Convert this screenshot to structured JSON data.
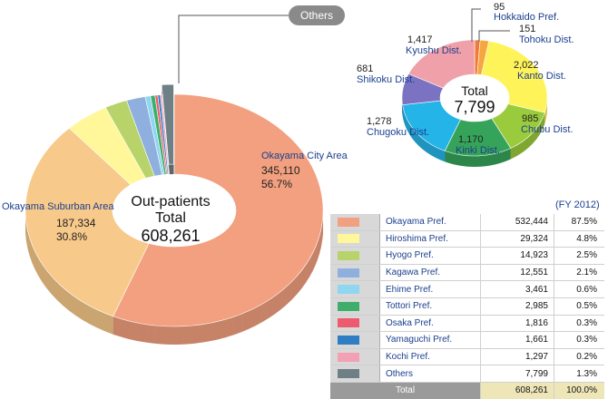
{
  "others_callout": "Others",
  "main_chart": {
    "center_title": "Out-patients Total",
    "center_total": "608,261",
    "labels": [
      {
        "name": "Okayama City Area",
        "value": "345,110",
        "pct": "56.7%"
      },
      {
        "name": "Okayama Suburban Area",
        "value": "187,334",
        "pct": "30.8%"
      }
    ]
  },
  "others_chart": {
    "center_title": "Total",
    "center_total": "7,799",
    "labels": [
      {
        "name": "Hokkaido Pref.",
        "value": "95"
      },
      {
        "name": "Tohoku Dist.",
        "value": "151"
      },
      {
        "name": "Kanto Dist.",
        "value": "2,022"
      },
      {
        "name": "Chubu Dist.",
        "value": "985"
      },
      {
        "name": "Kinki Dist.",
        "value": "1,170"
      },
      {
        "name": "Chugoku Dist.",
        "value": "1,278"
      },
      {
        "name": "Shikoku Dist.",
        "value": "681"
      },
      {
        "name": "Kyushu Dist.",
        "value": "1,417"
      }
    ]
  },
  "table": {
    "year_note": "(FY 2012)",
    "rows": [
      {
        "name": "Okayama Pref.",
        "value": "532,444",
        "pct": "87.5%"
      },
      {
        "name": "Hiroshima Pref.",
        "value": "29,324",
        "pct": "4.8%"
      },
      {
        "name": "Hyogo Pref.",
        "value": "14,923",
        "pct": "2.5%"
      },
      {
        "name": "Kagawa Pref.",
        "value": "12,551",
        "pct": "2.1%"
      },
      {
        "name": "Ehime Pref.",
        "value": "3,461",
        "pct": "0.6%"
      },
      {
        "name": "Tottori Pref.",
        "value": "2,985",
        "pct": "0.5%"
      },
      {
        "name": "Osaka Pref.",
        "value": "1,816",
        "pct": "0.3%"
      },
      {
        "name": "Yamaguchi Pref.",
        "value": "1,661",
        "pct": "0.3%"
      },
      {
        "name": "Kochi Pref.",
        "value": "1,297",
        "pct": "0.2%"
      },
      {
        "name": "Others",
        "value": "7,799",
        "pct": "1.3%"
      }
    ],
    "total": {
      "name": "Total",
      "value": "608,261",
      "pct": "100.0%"
    }
  },
  "colors": {
    "okayama_pref": "#f2a07f",
    "suburban_area": "#f7c98a",
    "hiroshima": "#fff799",
    "hyogo": "#b7d36a",
    "kagawa": "#8fb0de",
    "ehime": "#8fd6f0",
    "tottori": "#3fae6a",
    "osaka": "#ee5a6e",
    "yamaguchi": "#2f7dc2",
    "kochi": "#f2a1b5",
    "others": "#6f7f86",
    "hokkaido": "#f07a3a",
    "tohoku": "#f4a640",
    "kanto": "#fff35a",
    "chubu": "#9acb3c",
    "kinki": "#36a35a",
    "chugoku": "#25b4e8",
    "shikoku": "#7b73c2",
    "kyushu": "#f0a0a8"
  },
  "chart_data": [
    {
      "type": "pie",
      "title": "Out-patients Total",
      "categories": [
        "Okayama City Area",
        "Okayama Suburban Area",
        "Hiroshima Pref.",
        "Hyogo Pref.",
        "Kagawa Pref.",
        "Ehime Pref.",
        "Tottori Pref.",
        "Osaka Pref.",
        "Yamaguchi Pref.",
        "Kochi Pref.",
        "Others"
      ],
      "values": [
        345110,
        187334,
        29324,
        14923,
        12551,
        3461,
        2985,
        1816,
        1661,
        1297,
        7799
      ]
    },
    {
      "type": "pie",
      "title": "Total",
      "categories": [
        "Hokkaido Pref.",
        "Tohoku Dist.",
        "Kanto Dist.",
        "Chubu Dist.",
        "Kinki Dist.",
        "Chugoku Dist.",
        "Shikoku Dist.",
        "Kyushu Dist."
      ],
      "values": [
        95,
        151,
        2022,
        985,
        1170,
        1278,
        681,
        1417
      ]
    }
  ]
}
